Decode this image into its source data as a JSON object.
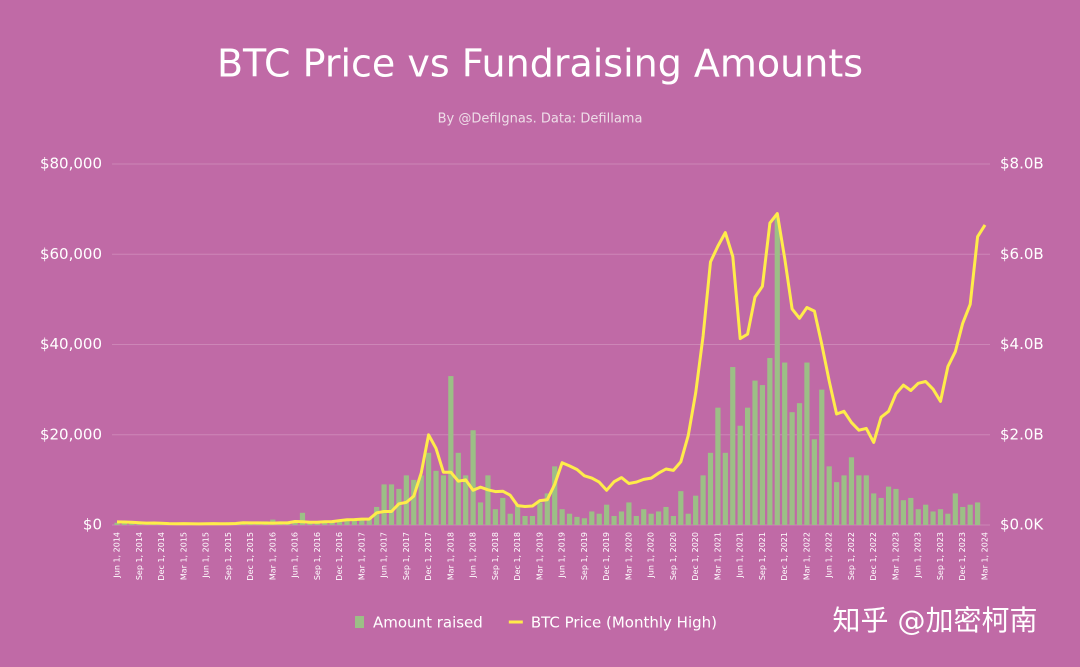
{
  "chart_data": {
    "type": "bar-line",
    "title": "BTC Price vs Fundraising Amounts",
    "subtitle": "By @DefiIgnas. Data: Defillama",
    "watermark": "知乎 @加密柯南",
    "categories": [
      "Jun 1, 2014",
      null,
      null,
      "Sep 1, 2014",
      null,
      null,
      "Dec 1, 2014",
      null,
      null,
      "Mar 1, 2015",
      null,
      null,
      "Jun 1, 2015",
      null,
      null,
      "Sep 1, 2015",
      null,
      null,
      "Dec 1, 2015",
      null,
      null,
      "Mar 1, 2016",
      null,
      null,
      "Jun 1, 2016",
      null,
      null,
      "Sep 1, 2016",
      null,
      null,
      "Dec 1, 2016",
      null,
      null,
      "Mar 1, 2017",
      null,
      null,
      "Jun 1, 2017",
      null,
      null,
      "Sep 1, 2017",
      null,
      null,
      "Dec 1, 2017",
      null,
      null,
      "Mar 1, 2018",
      null,
      null,
      "Jun 1, 2018",
      null,
      null,
      "Sep 1, 2018",
      null,
      null,
      "Dec 1, 2018",
      null,
      null,
      "Mar 1, 2019",
      null,
      null,
      "Jun 1, 2019",
      null,
      null,
      "Sep 1, 2019",
      null,
      null,
      "Dec 1, 2019",
      null,
      null,
      "Mar 1, 2020",
      null,
      null,
      "Jun 1, 2020",
      null,
      null,
      "Sep 1, 2020",
      null,
      null,
      "Dec 1, 2020",
      null,
      null,
      "Mar 1, 2021",
      null,
      null,
      "Jun 1, 2021",
      null,
      null,
      "Sep 1, 2021",
      null,
      null,
      "Dec 1, 2021",
      null,
      null,
      "Mar 1, 2022",
      null,
      null,
      "Jun 1, 2022",
      null,
      null,
      "Sep 1, 2022",
      null,
      null,
      "Dec 1, 2022",
      null,
      null,
      "Mar 1, 2023",
      null,
      null,
      "Jun 1, 2023",
      null,
      null,
      "Sep 1, 2023",
      null,
      null,
      "Dec 1, 2023",
      null,
      null,
      "Mar 1, 2024"
    ],
    "series": [
      {
        "name": "Amount raised",
        "type": "bar",
        "axis": "y2",
        "color": "#9cbf86",
        "values": [
          0.05,
          0.06,
          0.04,
          0.05,
          0.03,
          0.04,
          0.05,
          0.03,
          0.04,
          0.03,
          0.04,
          0.05,
          0.04,
          0.03,
          0.05,
          0.06,
          0.05,
          0.04,
          0.05,
          0.06,
          0.08,
          0.12,
          0.08,
          0.07,
          0.1,
          0.27,
          0.08,
          0.06,
          0.07,
          0.1,
          0.12,
          0.1,
          0.12,
          0.1,
          0.15,
          0.4,
          0.9,
          0.9,
          0.8,
          1.1,
          1.0,
          1.1,
          1.6,
          1.2,
          1.1,
          3.3,
          1.6,
          1.1,
          2.1,
          0.5,
          1.1,
          0.35,
          0.6,
          0.25,
          0.45,
          0.2,
          0.2,
          0.5,
          0.7,
          1.3,
          0.35,
          0.25,
          0.18,
          0.15,
          0.3,
          0.25,
          0.45,
          0.2,
          0.3,
          0.5,
          0.2,
          0.35,
          0.25,
          0.3,
          0.4,
          0.2,
          0.75,
          0.25,
          0.65,
          1.1,
          1.6,
          2.6,
          1.6,
          3.5,
          2.2,
          2.6,
          3.2,
          3.1,
          3.7,
          6.8,
          3.6,
          2.5,
          2.7,
          3.6,
          1.9,
          3.0,
          1.3,
          0.95,
          1.1,
          1.5,
          1.1,
          1.1,
          0.7,
          0.6,
          0.85,
          0.8,
          0.55,
          0.6,
          0.35,
          0.45,
          0.3,
          0.35,
          0.25,
          0.7,
          0.4,
          0.45,
          0.5,
          null
        ]
      },
      {
        "name": "BTC Price (Monthly High)",
        "type": "line",
        "color": "#ffec4a",
        "values": [
          680,
          660,
          600,
          500,
          420,
          450,
          390,
          310,
          260,
          300,
          260,
          250,
          270,
          310,
          280,
          260,
          330,
          500,
          460,
          460,
          440,
          420,
          470,
          470,
          780,
          700,
          620,
          620,
          730,
          750,
          980,
          1150,
          1200,
          1300,
          1300,
          2700,
          3000,
          3000,
          4700,
          5000,
          6400,
          11500,
          20000,
          17000,
          11700,
          11700,
          9700,
          10000,
          7700,
          8400,
          7800,
          7400,
          7500,
          6600,
          4300,
          4100,
          4200,
          5400,
          5600,
          9000,
          13800,
          13100,
          12300,
          10900,
          10400,
          9500,
          7700,
          9600,
          10500,
          9200,
          9500,
          10100,
          10400,
          11500,
          12400,
          12100,
          14000,
          19800,
          29300,
          41900,
          58300,
          61800,
          64800,
          59500,
          41300,
          42300,
          50500,
          52900,
          66900,
          69000,
          59100,
          47900,
          45800,
          48200,
          47400,
          40000,
          31900,
          24600,
          25200,
          22700,
          21000,
          21400,
          18300,
          23900,
          25200,
          29100,
          31000,
          29800,
          31400,
          31800,
          30100,
          27400,
          35100,
          38400,
          44700,
          48900,
          63900,
          66500
        ]
      }
    ],
    "ylim": [
      0,
      80000
    ],
    "yticks": [
      {
        "value": 0,
        "label": "$0"
      },
      {
        "value": 20000,
        "label": "$20,000"
      },
      {
        "value": 40000,
        "label": "$40,000"
      },
      {
        "value": 60000,
        "label": "$60,000"
      },
      {
        "value": 80000,
        "label": "$80,000"
      }
    ],
    "y2lim": [
      0,
      8
    ],
    "y2ticks": [
      {
        "value": 0,
        "label": "$0.0K"
      },
      {
        "value": 2,
        "label": "$2.0B"
      },
      {
        "value": 4,
        "label": "$4.0B"
      },
      {
        "value": 6,
        "label": "$6.0B"
      },
      {
        "value": 8,
        "label": "$8.0B"
      }
    ],
    "grid": true,
    "legend": "bottom"
  }
}
